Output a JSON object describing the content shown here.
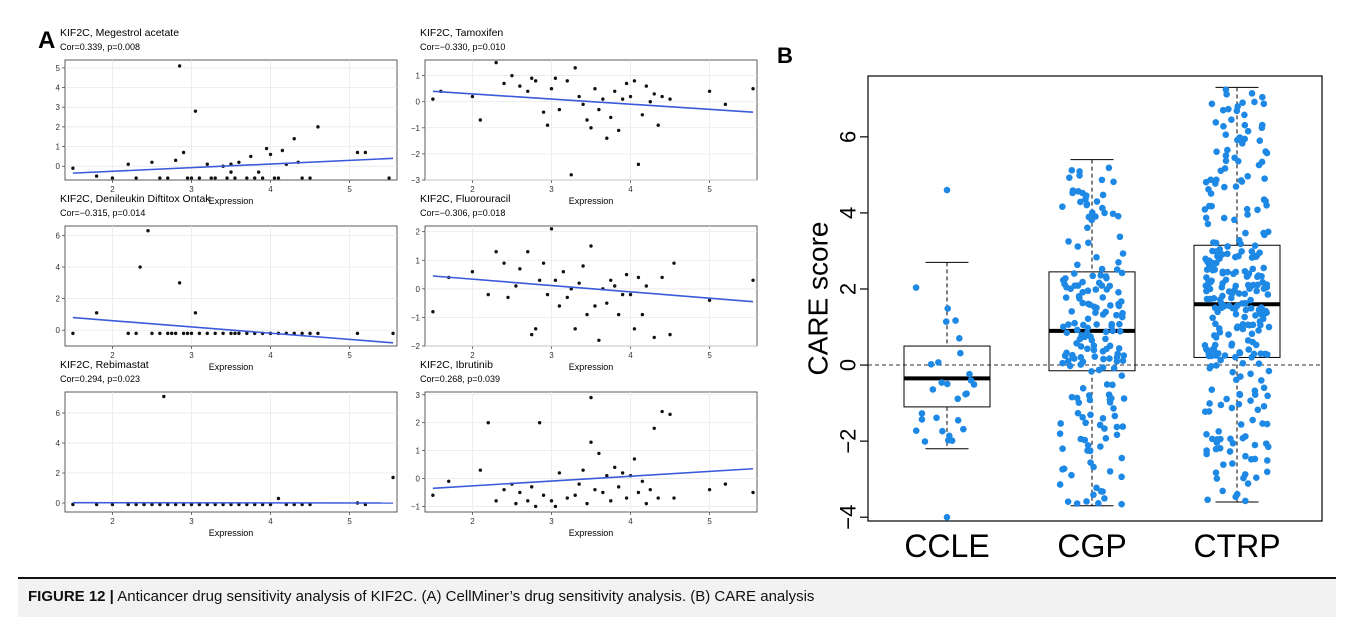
{
  "panel_a_label": "A",
  "panel_b_label": "B",
  "caption": {
    "label": "FIGURE 12 |",
    "text": " Anticancer drug sensitivity analysis of KIF2C. (A) CellMiner’s drug sensitivity analysis. (B) CARE analysis"
  },
  "colors": {
    "regression_line": "#3b5bdb",
    "box_points": "#1e88e5",
    "points": "#111111"
  },
  "chart_data": [
    {
      "type": "scatter",
      "title": "KIF2C, Megestrol acetate",
      "subtitle": "Cor=0.339, p=0.008",
      "xlabel": "Expression",
      "xlim": [
        1.4,
        5.6
      ],
      "ylim": [
        -0.7,
        5.4
      ],
      "xticks": [
        2,
        3,
        4,
        5
      ],
      "yticks": [
        0,
        1,
        2,
        3,
        4,
        5
      ],
      "fit": {
        "x": [
          1.5,
          5.55
        ],
        "y": [
          -0.35,
          0.4
        ]
      },
      "points": [
        [
          1.5,
          -0.1
        ],
        [
          1.8,
          -0.5
        ],
        [
          2.0,
          -0.6
        ],
        [
          2.2,
          0.1
        ],
        [
          2.3,
          -0.6
        ],
        [
          2.5,
          0.2
        ],
        [
          2.6,
          -0.6
        ],
        [
          2.7,
          -0.6
        ],
        [
          2.8,
          0.3
        ],
        [
          2.85,
          5.1
        ],
        [
          2.9,
          0.7
        ],
        [
          2.95,
          -0.6
        ],
        [
          3.0,
          -0.6
        ],
        [
          3.05,
          2.8
        ],
        [
          3.1,
          -0.6
        ],
        [
          3.2,
          0.1
        ],
        [
          3.25,
          -0.6
        ],
        [
          3.3,
          -0.6
        ],
        [
          3.4,
          0.0
        ],
        [
          3.45,
          -0.6
        ],
        [
          3.5,
          0.1
        ],
        [
          3.5,
          -0.3
        ],
        [
          3.55,
          -0.6
        ],
        [
          3.6,
          0.2
        ],
        [
          3.7,
          -0.6
        ],
        [
          3.75,
          0.5
        ],
        [
          3.8,
          -0.6
        ],
        [
          3.85,
          -0.3
        ],
        [
          3.9,
          -0.6
        ],
        [
          3.95,
          0.9
        ],
        [
          4.0,
          0.6
        ],
        [
          4.05,
          -0.6
        ],
        [
          4.1,
          -0.6
        ],
        [
          4.15,
          0.8
        ],
        [
          4.2,
          0.1
        ],
        [
          4.3,
          1.4
        ],
        [
          4.35,
          0.2
        ],
        [
          4.4,
          -0.6
        ],
        [
          4.5,
          -0.6
        ],
        [
          4.6,
          2.0
        ],
        [
          5.1,
          0.7
        ],
        [
          5.2,
          0.7
        ],
        [
          5.5,
          -0.6
        ]
      ]
    },
    {
      "type": "scatter",
      "title": "KIF2C, Tamoxifen",
      "subtitle": "Cor=−0.330, p=0.010",
      "xlabel": "Expression",
      "xlim": [
        1.4,
        5.6
      ],
      "ylim": [
        -3.0,
        1.6
      ],
      "xticks": [
        2,
        3,
        4,
        5
      ],
      "yticks": [
        -3,
        -2,
        -1,
        0,
        1
      ],
      "fit": {
        "x": [
          1.5,
          5.55
        ],
        "y": [
          0.4,
          -0.4
        ]
      },
      "points": [
        [
          1.5,
          0.1
        ],
        [
          1.6,
          0.4
        ],
        [
          2.0,
          0.2
        ],
        [
          2.1,
          -0.7
        ],
        [
          2.3,
          1.5
        ],
        [
          2.4,
          0.7
        ],
        [
          2.5,
          1.0
        ],
        [
          2.6,
          0.6
        ],
        [
          2.7,
          0.4
        ],
        [
          2.75,
          0.9
        ],
        [
          2.8,
          0.8
        ],
        [
          2.9,
          -0.4
        ],
        [
          2.95,
          -0.9
        ],
        [
          3.0,
          0.5
        ],
        [
          3.05,
          0.9
        ],
        [
          3.1,
          -0.3
        ],
        [
          3.2,
          0.8
        ],
        [
          3.25,
          -2.8
        ],
        [
          3.3,
          1.3
        ],
        [
          3.35,
          0.2
        ],
        [
          3.4,
          -0.1
        ],
        [
          3.45,
          -0.7
        ],
        [
          3.5,
          -1.0
        ],
        [
          3.55,
          0.5
        ],
        [
          3.6,
          -0.3
        ],
        [
          3.65,
          0.1
        ],
        [
          3.7,
          -1.4
        ],
        [
          3.75,
          -0.6
        ],
        [
          3.8,
          0.4
        ],
        [
          3.85,
          -1.1
        ],
        [
          3.9,
          0.1
        ],
        [
          3.95,
          0.7
        ],
        [
          4.0,
          0.2
        ],
        [
          4.05,
          0.8
        ],
        [
          4.1,
          -2.4
        ],
        [
          4.15,
          -0.5
        ],
        [
          4.2,
          0.6
        ],
        [
          4.25,
          0.0
        ],
        [
          4.3,
          0.3
        ],
        [
          4.35,
          -0.9
        ],
        [
          4.4,
          0.2
        ],
        [
          4.5,
          0.1
        ],
        [
          5.0,
          0.4
        ],
        [
          5.2,
          -0.1
        ],
        [
          5.55,
          0.5
        ]
      ]
    },
    {
      "type": "scatter",
      "title": "KIF2C, Denileukin Diftitox Ontak",
      "subtitle": "Cor=−0.315, p=0.014",
      "xlabel": "Expression",
      "xlim": [
        1.4,
        5.6
      ],
      "ylim": [
        -1.0,
        6.6
      ],
      "xticks": [
        2,
        3,
        4,
        5
      ],
      "yticks": [
        0,
        2,
        4,
        6
      ],
      "fit": {
        "x": [
          1.5,
          5.55
        ],
        "y": [
          0.8,
          -0.8
        ]
      },
      "points": [
        [
          1.5,
          -0.2
        ],
        [
          1.8,
          1.1
        ],
        [
          2.2,
          -0.2
        ],
        [
          2.3,
          -0.2
        ],
        [
          2.35,
          4.0
        ],
        [
          2.45,
          6.3
        ],
        [
          2.5,
          -0.2
        ],
        [
          2.6,
          -0.2
        ],
        [
          2.7,
          -0.2
        ],
        [
          2.75,
          -0.2
        ],
        [
          2.8,
          -0.2
        ],
        [
          2.85,
          3.0
        ],
        [
          2.9,
          -0.2
        ],
        [
          2.95,
          -0.2
        ],
        [
          3.0,
          -0.2
        ],
        [
          3.05,
          1.1
        ],
        [
          3.1,
          -0.2
        ],
        [
          3.2,
          -0.2
        ],
        [
          3.3,
          -0.2
        ],
        [
          3.4,
          -0.2
        ],
        [
          3.5,
          -0.2
        ],
        [
          3.55,
          -0.2
        ],
        [
          3.6,
          -0.2
        ],
        [
          3.7,
          -0.2
        ],
        [
          3.8,
          -0.2
        ],
        [
          3.9,
          -0.2
        ],
        [
          4.0,
          -0.2
        ],
        [
          4.1,
          -0.2
        ],
        [
          4.2,
          -0.2
        ],
        [
          4.3,
          -0.2
        ],
        [
          4.4,
          -0.2
        ],
        [
          4.5,
          -0.2
        ],
        [
          4.6,
          -0.2
        ],
        [
          5.1,
          -0.2
        ],
        [
          5.55,
          -0.2
        ]
      ]
    },
    {
      "type": "scatter",
      "title": "KIF2C, Fluorouracil",
      "subtitle": "Cor=−0.306, p=0.018",
      "xlabel": "Expression",
      "xlim": [
        1.4,
        5.6
      ],
      "ylim": [
        -2.0,
        2.2
      ],
      "xticks": [
        2,
        3,
        4,
        5
      ],
      "yticks": [
        -2,
        -1,
        0,
        1,
        2
      ],
      "fit": {
        "x": [
          1.5,
          5.55
        ],
        "y": [
          0.45,
          -0.45
        ]
      },
      "points": [
        [
          1.5,
          -0.8
        ],
        [
          1.7,
          0.4
        ],
        [
          2.0,
          0.6
        ],
        [
          2.2,
          -0.2
        ],
        [
          2.3,
          1.3
        ],
        [
          2.4,
          0.9
        ],
        [
          2.45,
          -0.3
        ],
        [
          2.55,
          0.1
        ],
        [
          2.6,
          0.7
        ],
        [
          2.7,
          1.3
        ],
        [
          2.75,
          -1.6
        ],
        [
          2.8,
          -1.4
        ],
        [
          2.85,
          0.3
        ],
        [
          2.9,
          0.9
        ],
        [
          2.95,
          -0.2
        ],
        [
          3.0,
          2.1
        ],
        [
          3.05,
          0.3
        ],
        [
          3.1,
          -0.6
        ],
        [
          3.15,
          0.6
        ],
        [
          3.2,
          -0.3
        ],
        [
          3.25,
          0.0
        ],
        [
          3.3,
          -1.4
        ],
        [
          3.35,
          0.2
        ],
        [
          3.4,
          0.8
        ],
        [
          3.45,
          -0.9
        ],
        [
          3.5,
          1.5
        ],
        [
          3.55,
          -0.6
        ],
        [
          3.6,
          -1.8
        ],
        [
          3.65,
          0.0
        ],
        [
          3.7,
          -0.5
        ],
        [
          3.75,
          0.3
        ],
        [
          3.8,
          0.1
        ],
        [
          3.85,
          -0.9
        ],
        [
          3.9,
          -0.2
        ],
        [
          3.95,
          0.5
        ],
        [
          4.0,
          -0.2
        ],
        [
          4.05,
          -1.4
        ],
        [
          4.1,
          0.4
        ],
        [
          4.15,
          -0.9
        ],
        [
          4.2,
          0.1
        ],
        [
          4.3,
          -1.7
        ],
        [
          4.4,
          0.4
        ],
        [
          4.5,
          -1.6
        ],
        [
          4.55,
          0.9
        ],
        [
          5.0,
          -0.4
        ],
        [
          5.55,
          0.3
        ]
      ]
    },
    {
      "type": "scatter",
      "title": "KIF2C, Rebimastat",
      "subtitle": "Cor=0.294, p=0.023",
      "xlabel": "Expression",
      "xlim": [
        1.4,
        5.6
      ],
      "ylim": [
        -0.6,
        7.4
      ],
      "xticks": [
        2,
        3,
        4,
        5
      ],
      "yticks": [
        0,
        2,
        4,
        6
      ],
      "fit": {
        "x": [
          1.5,
          5.55
        ],
        "y": [
          0.02,
          0.0
        ]
      },
      "points": [
        [
          1.5,
          -0.1
        ],
        [
          1.8,
          -0.1
        ],
        [
          2.0,
          -0.1
        ],
        [
          2.2,
          -0.1
        ],
        [
          2.3,
          -0.1
        ],
        [
          2.4,
          -0.1
        ],
        [
          2.5,
          -0.1
        ],
        [
          2.6,
          -0.1
        ],
        [
          2.65,
          7.1
        ],
        [
          2.7,
          -0.1
        ],
        [
          2.8,
          -0.1
        ],
        [
          2.9,
          -0.1
        ],
        [
          3.0,
          -0.1
        ],
        [
          3.1,
          -0.1
        ],
        [
          3.2,
          -0.1
        ],
        [
          3.3,
          -0.1
        ],
        [
          3.4,
          -0.1
        ],
        [
          3.5,
          -0.1
        ],
        [
          3.6,
          -0.1
        ],
        [
          3.7,
          -0.1
        ],
        [
          3.8,
          -0.1
        ],
        [
          3.9,
          -0.1
        ],
        [
          4.0,
          -0.1
        ],
        [
          4.1,
          0.3
        ],
        [
          4.2,
          -0.1
        ],
        [
          4.3,
          -0.1
        ],
        [
          4.4,
          -0.1
        ],
        [
          4.5,
          -0.1
        ],
        [
          5.1,
          0.0
        ],
        [
          5.2,
          -0.1
        ],
        [
          5.55,
          1.7
        ]
      ]
    },
    {
      "type": "scatter",
      "title": "KIF2C, Ibrutinib",
      "subtitle": "Cor=0.268, p=0.039",
      "xlabel": "Expression",
      "xlim": [
        1.4,
        5.6
      ],
      "ylim": [
        -1.2,
        3.1
      ],
      "xticks": [
        2,
        3,
        4,
        5
      ],
      "yticks": [
        -1,
        0,
        1,
        2,
        3
      ],
      "fit": {
        "x": [
          1.5,
          5.55
        ],
        "y": [
          -0.35,
          0.35
        ]
      },
      "points": [
        [
          1.5,
          -0.6
        ],
        [
          1.7,
          -0.1
        ],
        [
          2.1,
          0.3
        ],
        [
          2.2,
          2.0
        ],
        [
          2.3,
          -0.8
        ],
        [
          2.4,
          -0.4
        ],
        [
          2.5,
          -0.2
        ],
        [
          2.55,
          -0.9
        ],
        [
          2.6,
          -0.5
        ],
        [
          2.7,
          -0.8
        ],
        [
          2.75,
          -0.3
        ],
        [
          2.8,
          -1.0
        ],
        [
          2.85,
          2.0
        ],
        [
          2.9,
          -0.6
        ],
        [
          3.0,
          -0.8
        ],
        [
          3.05,
          -1.0
        ],
        [
          3.1,
          0.2
        ],
        [
          3.2,
          -0.7
        ],
        [
          3.3,
          -0.6
        ],
        [
          3.35,
          -0.2
        ],
        [
          3.4,
          0.3
        ],
        [
          3.45,
          -0.9
        ],
        [
          3.5,
          2.9
        ],
        [
          3.5,
          1.3
        ],
        [
          3.55,
          -0.4
        ],
        [
          3.6,
          0.9
        ],
        [
          3.65,
          -0.5
        ],
        [
          3.7,
          0.1
        ],
        [
          3.75,
          -0.8
        ],
        [
          3.8,
          0.4
        ],
        [
          3.85,
          -0.3
        ],
        [
          3.9,
          0.2
        ],
        [
          3.95,
          -0.7
        ],
        [
          4.0,
          0.1
        ],
        [
          4.05,
          0.7
        ],
        [
          4.1,
          -0.5
        ],
        [
          4.15,
          -0.1
        ],
        [
          4.2,
          -0.9
        ],
        [
          4.25,
          -0.4
        ],
        [
          4.3,
          1.8
        ],
        [
          4.35,
          -0.7
        ],
        [
          4.4,
          2.4
        ],
        [
          4.5,
          2.3
        ],
        [
          4.55,
          -0.7
        ],
        [
          5.0,
          -0.4
        ],
        [
          5.2,
          -0.2
        ],
        [
          5.55,
          -0.5
        ]
      ]
    },
    {
      "type": "box",
      "ylabel": "CARE score",
      "ylim": [
        -4.1,
        7.6
      ],
      "yticks": [
        -4,
        -2,
        0,
        2,
        4,
        6
      ],
      "categories": [
        "CCLE",
        "CGP",
        "CTRP"
      ],
      "boxes": [
        {
          "name": "CCLE",
          "whisker_low": -2.2,
          "q1": -1.1,
          "median": -0.35,
          "q3": 0.5,
          "whisker_high": 2.7,
          "n_points": 28,
          "outliers": [
            4.6,
            -4.0
          ]
        },
        {
          "name": "CGP",
          "whisker_low": -3.7,
          "q1": -0.15,
          "median": 0.9,
          "q3": 2.45,
          "whisker_high": 5.4,
          "n_points": 190,
          "outliers": []
        },
        {
          "name": "CTRP",
          "whisker_low": -3.6,
          "q1": 0.2,
          "median": 1.6,
          "q3": 3.15,
          "whisker_high": 7.3,
          "n_points": 290,
          "outliers": []
        }
      ],
      "reference_line": 0
    }
  ]
}
